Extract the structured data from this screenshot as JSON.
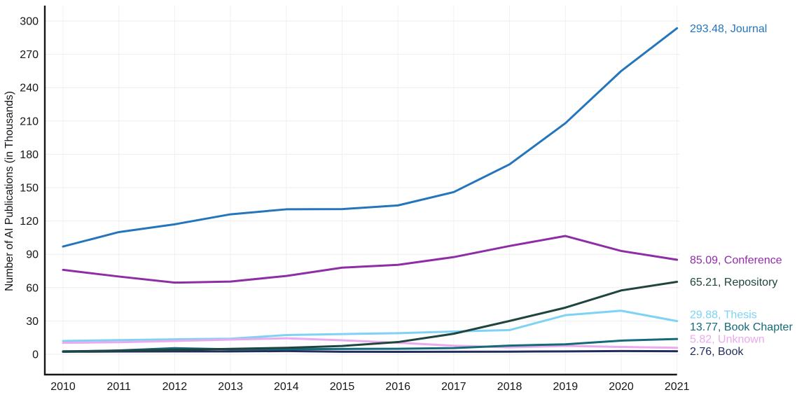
{
  "chart_data": {
    "type": "line",
    "title": "",
    "xlabel": "",
    "ylabel": "Number of AI Publications (in Thousands)",
    "x": [
      2010,
      2011,
      2012,
      2013,
      2014,
      2015,
      2016,
      2017,
      2018,
      2019,
      2020,
      2021
    ],
    "ylim": [
      0,
      300
    ],
    "yticks": [
      0,
      30,
      60,
      90,
      120,
      150,
      180,
      210,
      240,
      270,
      300
    ],
    "grid": true,
    "legend_position": "end-of-line-labels-right",
    "axis_color": "#161616",
    "gridline_color": "#ededed",
    "series": [
      {
        "name": "Journal",
        "end_label": "293.48, Journal",
        "end_value": 293.48,
        "color": "#2575BC",
        "values": [
          97.0,
          110.0,
          117.0,
          126.0,
          130.5,
          130.7,
          134.0,
          146.0,
          171.0,
          208.0,
          255.0,
          293.48
        ]
      },
      {
        "name": "Conference",
        "end_label": "85.09, Conference",
        "end_value": 85.09,
        "color": "#8F2DA6",
        "values": [
          76.0,
          70.0,
          64.5,
          65.5,
          70.5,
          78.0,
          80.5,
          87.5,
          97.5,
          106.5,
          93.0,
          85.09
        ]
      },
      {
        "name": "Repository",
        "end_label": "65.21, Repository",
        "end_value": 65.21,
        "color": "#1F453E",
        "values": [
          2.7,
          3.2,
          4.0,
          4.9,
          5.8,
          7.5,
          11.0,
          18.5,
          30.0,
          42.0,
          57.5,
          65.21
        ]
      },
      {
        "name": "Thesis",
        "end_label": "29.88, Thesis",
        "end_value": 29.88,
        "color": "#7ED3F5",
        "values": [
          12.0,
          12.8,
          13.5,
          14.0,
          17.3,
          18.2,
          19.0,
          20.5,
          21.8,
          35.2,
          39.2,
          29.88
        ]
      },
      {
        "name": "Book Chapter",
        "end_label": "13.77, Book Chapter",
        "end_value": 13.77,
        "color": "#156A79",
        "values": [
          2.2,
          3.5,
          5.5,
          4.5,
          4.6,
          4.8,
          5.0,
          5.6,
          7.8,
          9.0,
          12.3,
          13.77
        ]
      },
      {
        "name": "Unknown",
        "end_label": "5.82, Unknown",
        "end_value": 5.82,
        "color": "#EAAAEE",
        "values": [
          10.3,
          10.9,
          12.0,
          13.2,
          14.4,
          12.6,
          10.4,
          7.7,
          6.2,
          7.6,
          6.6,
          5.82
        ]
      },
      {
        "name": "Book",
        "end_label": "2.76, Book",
        "end_value": 2.76,
        "color": "#232D5C",
        "values": [
          2.3,
          2.5,
          2.6,
          2.6,
          2.9,
          2.3,
          2.2,
          2.3,
          2.4,
          2.6,
          2.9,
          2.76
        ]
      }
    ]
  }
}
